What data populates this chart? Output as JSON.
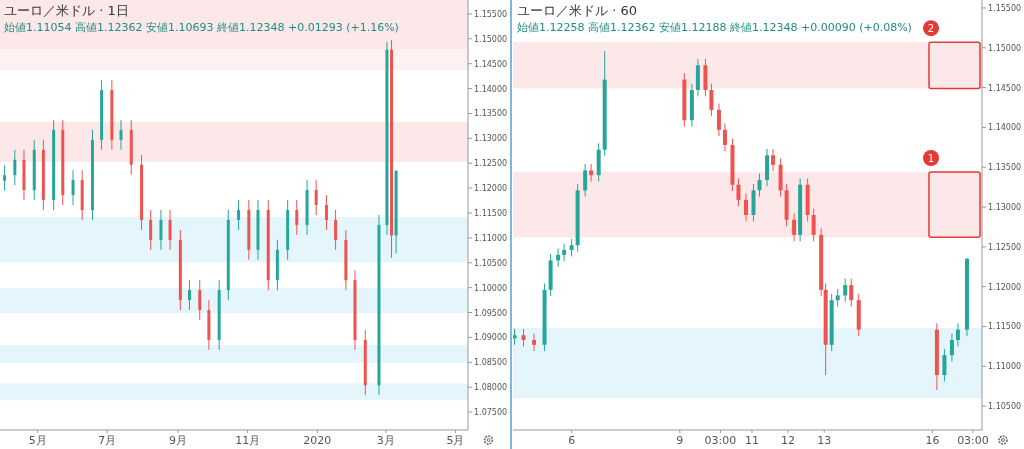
{
  "chart_data": [
    {
      "type": "candlestick",
      "title": "ユーロ／米ドル · 1日",
      "subtitle": "始値1.11054 高値1.12362 安値1.10693 終値1.12348 +0.01293 (+1.16%)",
      "xlim": [
        "2019-03-29",
        "2020-05-12"
      ],
      "xticks": [
        {
          "value": "2019-05-01",
          "label": "5月"
        },
        {
          "value": "2019-07-01",
          "label": "7月"
        },
        {
          "value": "2019-09-01",
          "label": "9月"
        },
        {
          "value": "2019-11-01",
          "label": "11月"
        },
        {
          "value": "2020-01-01",
          "label": "2020"
        },
        {
          "value": "2020-03-01",
          "label": "3月"
        },
        {
          "value": "2020-05-01",
          "label": "5月"
        }
      ],
      "ylim": [
        1.0714,
        1.1578
      ],
      "yticks": [
        {
          "value": 1.075,
          "label": "1.07500"
        },
        {
          "value": 1.08,
          "label": "1.08000"
        },
        {
          "value": 1.085,
          "label": "1.08500"
        },
        {
          "value": 1.09,
          "label": "1.09000"
        },
        {
          "value": 1.095,
          "label": "1.09500"
        },
        {
          "value": 1.1,
          "label": "1.10000"
        },
        {
          "value": 1.105,
          "label": "1.10500"
        },
        {
          "value": 1.11,
          "label": "1.11000"
        },
        {
          "value": 1.115,
          "label": "1.11500"
        },
        {
          "value": 1.12,
          "label": "1.12000"
        },
        {
          "value": 1.125,
          "label": "1.12500"
        },
        {
          "value": 1.13,
          "label": "1.13000"
        },
        {
          "value": 1.135,
          "label": "1.13500"
        },
        {
          "value": 1.14,
          "label": "1.14000"
        },
        {
          "value": 1.145,
          "label": "1.14500"
        },
        {
          "value": 1.15,
          "label": "1.15000"
        },
        {
          "value": 1.155,
          "label": "1.15500"
        }
      ],
      "series": [
        {
          "color": "#26a69a",
          "x": [
            "2019-04-02",
            "2019-04-11",
            "2019-04-28",
            "2019-05-15",
            "2019-06-01",
            "2019-06-18",
            "2019-06-26",
            "2019-07-13",
            "2019-08-17",
            "2019-09-11",
            "2019-10-07",
            "2019-10-15",
            "2019-10-24",
            "2019-11-10",
            "2019-11-27",
            "2019-12-06",
            "2019-12-23",
            "2020-02-24",
            "2020-03-02",
            "2020-03-10"
          ],
          "ohlc": [
            [
              1.1215,
              1.1246,
              1.1195,
              1.1226
            ],
            [
              1.1226,
              1.1277,
              1.1206,
              1.1257
            ],
            [
              1.1196,
              1.1297,
              1.1176,
              1.1277
            ],
            [
              1.1176,
              1.1337,
              1.1156,
              1.1317
            ],
            [
              1.1186,
              1.1236,
              1.1166,
              1.1216
            ],
            [
              1.1156,
              1.1317,
              1.1136,
              1.1297
            ],
            [
              1.1297,
              1.1417,
              1.1277,
              1.1397
            ],
            [
              1.1297,
              1.1337,
              1.1277,
              1.1317
            ],
            [
              1.1096,
              1.1156,
              1.1076,
              1.1136
            ],
            [
              1.0975,
              1.1015,
              1.0955,
              1.0995
            ],
            [
              1.0895,
              1.1015,
              1.0875,
              1.0995
            ],
            [
              1.0995,
              1.1156,
              1.0975,
              1.1136
            ],
            [
              1.1136,
              1.1176,
              1.1116,
              1.1156
            ],
            [
              1.1076,
              1.1176,
              1.1056,
              1.1156
            ],
            [
              1.1015,
              1.1096,
              1.0995,
              1.1076
            ],
            [
              1.1076,
              1.1176,
              1.1056,
              1.1156
            ],
            [
              1.1126,
              1.1216,
              1.1106,
              1.1196
            ],
            [
              1.0804,
              1.1146,
              1.0784,
              1.1126
            ],
            [
              1.1126,
              1.1494,
              1.1106,
              1.1478
            ],
            [
              1.1105,
              1.1236,
              1.1069,
              1.1235
            ]
          ]
        },
        {
          "color": "#ef5350",
          "x": [
            "2019-04-19",
            "2019-05-06",
            "2019-05-23",
            "2019-06-09",
            "2019-07-05",
            "2019-07-22",
            "2019-07-31",
            "2019-08-08",
            "2019-08-25",
            "2019-09-03",
            "2019-09-20",
            "2019-09-28",
            "2019-11-02",
            "2019-11-19",
            "2019-12-14",
            "2019-12-31",
            "2020-01-09",
            "2020-01-17",
            "2020-01-26",
            "2020-02-03",
            "2020-02-12",
            "2020-03-06"
          ],
          "ohlc": [
            [
              1.1257,
              1.1277,
              1.1176,
              1.1196
            ],
            [
              1.1277,
              1.1297,
              1.1156,
              1.1176
            ],
            [
              1.1317,
              1.1337,
              1.1166,
              1.1186
            ],
            [
              1.1216,
              1.1236,
              1.1136,
              1.1156
            ],
            [
              1.1397,
              1.1417,
              1.1277,
              1.1297
            ],
            [
              1.1317,
              1.1337,
              1.1227,
              1.1247
            ],
            [
              1.1247,
              1.1267,
              1.1116,
              1.1136
            ],
            [
              1.1136,
              1.1156,
              1.1076,
              1.1096
            ],
            [
              1.1136,
              1.1156,
              1.1076,
              1.1096
            ],
            [
              1.1096,
              1.1116,
              1.0955,
              1.0975
            ],
            [
              1.0995,
              1.1015,
              1.0935,
              1.0955
            ],
            [
              1.0955,
              1.0975,
              1.0875,
              1.0895
            ],
            [
              1.1156,
              1.1176,
              1.1056,
              1.1076
            ],
            [
              1.1156,
              1.1176,
              1.0995,
              1.1015
            ],
            [
              1.1156,
              1.1176,
              1.1106,
              1.1126
            ],
            [
              1.1196,
              1.1216,
              1.1146,
              1.1166
            ],
            [
              1.1166,
              1.1186,
              1.1116,
              1.1136
            ],
            [
              1.1136,
              1.1156,
              1.1076,
              1.1096
            ],
            [
              1.1096,
              1.1116,
              1.0995,
              1.1015
            ],
            [
              1.1015,
              1.1035,
              1.0875,
              1.0895
            ],
            [
              1.0895,
              1.0915,
              1.0784,
              1.0804
            ],
            [
              1.1478,
              1.1498,
              1.106,
              1.1105
            ]
          ]
        }
      ],
      "bands": [
        {
          "axis": "y",
          "from": 1.1478,
          "to": 1.1578,
          "color": "#fce8e8"
        },
        {
          "axis": "y",
          "from": 1.1437,
          "to": 1.1478,
          "color": "#fdf2f2"
        },
        {
          "axis": "y",
          "from": 1.1253,
          "to": 1.1333,
          "color": "#fce8e8"
        },
        {
          "axis": "y",
          "from": 1.1051,
          "to": 1.1142,
          "color": "#e4f5fb"
        },
        {
          "axis": "y",
          "from": 1.0949,
          "to": 1.0999,
          "color": "#e4f5fb"
        },
        {
          "axis": "y",
          "from": 1.0849,
          "to": 1.0885,
          "color": "#e4f5fb"
        },
        {
          "axis": "y",
          "from": 1.0774,
          "to": 1.0808,
          "color": "#e4f5fb"
        }
      ]
    },
    {
      "type": "candlestick",
      "title": "ユーロ／米ドル · 60",
      "subtitle": "始値1.12258 高値1.12362 安値1.12188 終値1.12348 +0.00090 (+0.08%)",
      "xlim": [
        "2020-03-04T09:00",
        "2020-03-17T09:00"
      ],
      "xticks": [
        {
          "value": "2020-03-06T00:00",
          "label": "6"
        },
        {
          "value": "2020-03-09T00:00",
          "label": "9"
        },
        {
          "value": "2020-03-10T03:00",
          "label": "03:00"
        },
        {
          "value": "2020-03-11T00:00",
          "label": "11"
        },
        {
          "value": "2020-03-12T00:00",
          "label": "12"
        },
        {
          "value": "2020-03-13T00:00",
          "label": "13"
        },
        {
          "value": "2020-03-16T00:00",
          "label": "16"
        },
        {
          "value": "2020-03-17T03:00",
          "label": "03:00"
        }
      ],
      "ylim": [
        1.102,
        1.156
      ],
      "yticks": [
        {
          "value": 1.105,
          "label": "1.10500"
        },
        {
          "value": 1.11,
          "label": "1.11000"
        },
        {
          "value": 1.115,
          "label": "1.11500"
        },
        {
          "value": 1.12,
          "label": "1.12000"
        },
        {
          "value": 1.125,
          "label": "1.12500"
        },
        {
          "value": 1.13,
          "label": "1.13000"
        },
        {
          "value": 1.135,
          "label": "1.13500"
        },
        {
          "value": 1.14,
          "label": "1.14000"
        },
        {
          "value": 1.145,
          "label": "1.14500"
        },
        {
          "value": 1.15,
          "label": "1.15000"
        },
        {
          "value": 1.155,
          "label": "1.15500"
        }
      ],
      "series": [
        {
          "color": "#26a69a",
          "x": [
            "2020-03-04T10:00",
            "2020-03-05T06:00",
            "2020-03-05T10:00",
            "2020-03-05T15:00",
            "2020-03-05T19:00",
            "2020-03-06T00:00",
            "2020-03-06T04:00",
            "2020-03-06T09:00",
            "2020-03-06T18:00",
            "2020-03-06T22:00",
            "2020-03-09T08:00",
            "2020-03-09T12:00",
            "2020-03-11T01:00",
            "2020-03-11T05:00",
            "2020-03-11T10:00",
            "2020-03-12T08:00",
            "2020-03-13T05:00",
            "2020-03-13T09:00",
            "2020-03-13T14:00",
            "2020-03-16T08:00",
            "2020-03-16T13:00",
            "2020-03-16T17:00",
            "2020-03-16T23:00"
          ],
          "ohlc": [
            [
              1.1135,
              1.1147,
              1.1127,
              1.1139
            ],
            [
              1.1127,
              1.1204,
              1.1119,
              1.1196
            ],
            [
              1.1196,
              1.1241,
              1.1188,
              1.1233
            ],
            [
              1.1233,
              1.1248,
              1.1225,
              1.124
            ],
            [
              1.124,
              1.1254,
              1.1232,
              1.1246
            ],
            [
              1.1246,
              1.126,
              1.1238,
              1.1252
            ],
            [
              1.1252,
              1.1329,
              1.1244,
              1.1321
            ],
            [
              1.1321,
              1.1354,
              1.1313,
              1.1346
            ],
            [
              1.134,
              1.138,
              1.1332,
              1.1372
            ],
            [
              1.1372,
              1.1496,
              1.1364,
              1.146
            ],
            [
              1.1409,
              1.1455,
              1.1401,
              1.1447
            ],
            [
              1.1447,
              1.1486,
              1.1439,
              1.1478
            ],
            [
              1.129,
              1.1329,
              1.1282,
              1.1321
            ],
            [
              1.1321,
              1.1342,
              1.1313,
              1.1334
            ],
            [
              1.1334,
              1.1373,
              1.1326,
              1.1365
            ],
            [
              1.1265,
              1.1336,
              1.1257,
              1.1328
            ],
            [
              1.1127,
              1.1191,
              1.1119,
              1.1183
            ],
            [
              1.1183,
              1.1197,
              1.1175,
              1.1189
            ],
            [
              1.1189,
              1.121,
              1.1181,
              1.1202
            ],
            [
              1.1089,
              1.1122,
              1.1081,
              1.1114
            ],
            [
              1.1114,
              1.1141,
              1.1106,
              1.1133
            ],
            [
              1.1133,
              1.1154,
              1.1125,
              1.1146
            ],
            [
              1.1146,
              1.1236,
              1.1138,
              1.1235
            ]
          ]
        },
        {
          "color": "#ef5350",
          "x": [
            "2020-03-04T16:00",
            "2020-03-04T23:00",
            "2020-03-06T13:00",
            "2020-03-09T03:00",
            "2020-03-09T17:00",
            "2020-03-09T21:00",
            "2020-03-10T02:00",
            "2020-03-10T06:00",
            "2020-03-10T11:00",
            "2020-03-10T15:00",
            "2020-03-10T20:00",
            "2020-03-11T14:00",
            "2020-03-11T19:00",
            "2020-03-11T23:00",
            "2020-03-12T04:00",
            "2020-03-12T13:00",
            "2020-03-12T17:00",
            "2020-03-12T22:00",
            "2020-03-13T01:00",
            "2020-03-13T18:00",
            "2020-03-13T23:00",
            "2020-03-16T03:00"
          ],
          "ohlc": [
            [
              1.1139,
              1.1147,
              1.1125,
              1.1133
            ],
            [
              1.1133,
              1.1141,
              1.1119,
              1.1127
            ],
            [
              1.1346,
              1.1354,
              1.1332,
              1.134
            ],
            [
              1.146,
              1.1468,
              1.1401,
              1.1409
            ],
            [
              1.1478,
              1.1486,
              1.1439,
              1.1447
            ],
            [
              1.1447,
              1.1455,
              1.1414,
              1.1422
            ],
            [
              1.1422,
              1.143,
              1.1389,
              1.1397
            ],
            [
              1.1397,
              1.1405,
              1.137,
              1.1378
            ],
            [
              1.1378,
              1.1386,
              1.132,
              1.1328
            ],
            [
              1.1328,
              1.1336,
              1.1301,
              1.1309
            ],
            [
              1.1309,
              1.1317,
              1.1282,
              1.129
            ],
            [
              1.1365,
              1.1373,
              1.1345,
              1.1353
            ],
            [
              1.1353,
              1.1361,
              1.1313,
              1.1321
            ],
            [
              1.1321,
              1.1329,
              1.1276,
              1.1284
            ],
            [
              1.1284,
              1.1292,
              1.1257,
              1.1265
            ],
            [
              1.1328,
              1.1336,
              1.1282,
              1.129
            ],
            [
              1.129,
              1.1298,
              1.1257,
              1.1265
            ],
            [
              1.1265,
              1.1273,
              1.1188,
              1.1196
            ],
            [
              1.1196,
              1.1204,
              1.1089,
              1.1127
            ],
            [
              1.1202,
              1.121,
              1.1175,
              1.1183
            ],
            [
              1.1183,
              1.1191,
              1.1138,
              1.1146
            ],
            [
              1.1146,
              1.1154,
              1.107,
              1.1089
            ]
          ]
        }
      ],
      "bands": [
        {
          "axis": "y",
          "from": 1.1449,
          "to": 1.1507,
          "color": "#fce8e8",
          "label": "2"
        },
        {
          "axis": "y",
          "from": 1.1262,
          "to": 1.1344,
          "color": "#fce8e8",
          "label": "1"
        },
        {
          "axis": "y",
          "from": 1.106,
          "to": 1.1148,
          "color": "#e4f5fb"
        }
      ]
    }
  ]
}
